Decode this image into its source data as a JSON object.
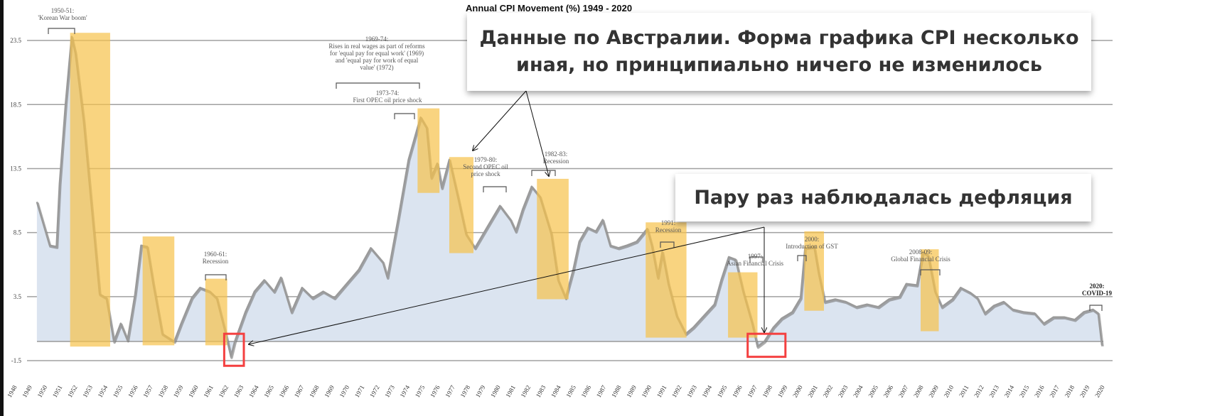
{
  "chart_data": {
    "type": "area",
    "title": "Annual CPI Movement (%) 1949 - 2020",
    "xlabel": "",
    "ylabel": "",
    "ylim": [
      -1.5,
      23.5
    ],
    "yticks": [
      "23.5",
      "18.5",
      "13.5",
      "8.5",
      "3.5",
      "-1.5"
    ],
    "ytick_values": [
      23.5,
      18.5,
      13.5,
      8.5,
      3.5,
      -1.5
    ],
    "xlim": [
      1948,
      2020
    ],
    "grid": true,
    "colors": {
      "area": "#dbe4f0",
      "line": "#9a9a9a",
      "band": "#f7c24a",
      "highlight": "#f44040",
      "grid": "#a0a0a0"
    },
    "series": [
      {
        "x": [
          1949.5,
          1950.35,
          1950.8,
          1951.0,
          1951.4,
          1951.8,
          1952.05,
          1952.6,
          1953.2,
          1953.65,
          1954.1,
          1954.6,
          1955.05,
          1955.5,
          1956.0,
          1956.4,
          1956.8,
          1957.2,
          1957.8,
          1958.6,
          1959.05,
          1959.75,
          1960.3,
          1960.95,
          1961.4,
          1962.0,
          1962.35,
          1962.6,
          1963.3,
          1963.9,
          1964.55,
          1965.2,
          1965.65,
          1966.35,
          1967.05,
          1967.75,
          1968.45,
          1969.2,
          1970.0,
          1970.8,
          1971.6,
          1972.4,
          1972.7,
          1973.4,
          1974.1,
          1974.7,
          1974.9,
          1975.3,
          1975.6,
          1976.0,
          1976.3,
          1976.8,
          1977.4,
          1977.9,
          1978.5,
          1979.3,
          1980.15,
          1980.85,
          1981.2,
          1981.65,
          1982.25,
          1982.8,
          1983.55,
          1984.0,
          1984.5,
          1985.0,
          1985.4,
          1985.95,
          1986.5,
          1986.95,
          1987.45,
          1988.0,
          1988.55,
          1989.2,
          1989.9,
          1990.2,
          1990.6,
          1990.9,
          1991.3,
          1991.85,
          1992.45,
          1992.95,
          1993.65,
          1994.35,
          1994.8,
          1995.3,
          1995.75,
          1996.25,
          1996.85,
          1997.2,
          1997.65,
          1998.25,
          1998.8,
          1999.5,
          2000.05,
          2000.35,
          2000.95,
          2001.25,
          2001.65,
          2002.35,
          2003.05,
          2003.75,
          2004.45,
          2005.2,
          2005.9,
          2006.6,
          2007.05,
          2007.75,
          2008.15,
          2008.5,
          2008.95,
          2009.4,
          2010.1,
          2010.65,
          2011.3,
          2011.75,
          2012.25,
          2012.85,
          2013.5,
          2014.1,
          2014.8,
          2015.55,
          2016.15,
          2016.8,
          2017.5,
          2018.2,
          2018.8,
          2019.4,
          2019.75,
          2020.0
        ],
        "values": [
          10.9,
          7.5,
          7.4,
          12.3,
          18.6,
          23.8,
          22.5,
          17.2,
          9.5,
          3.7,
          3.4,
          0,
          1.4,
          0.1,
          3.7,
          7.5,
          7.4,
          4.5,
          0.6,
          0,
          1.4,
          3.4,
          4.2,
          3.9,
          3.4,
          0.6,
          -1.2,
          0,
          2.3,
          3.9,
          4.8,
          3.9,
          5.0,
          2.3,
          4.2,
          3.4,
          3.9,
          3.4,
          4.5,
          5.6,
          7.3,
          6.2,
          5.0,
          9.5,
          14.2,
          16.7,
          17.5,
          16.7,
          12.8,
          13.9,
          12.0,
          14.2,
          11.1,
          8.4,
          7.3,
          8.9,
          10.6,
          9.5,
          8.6,
          10.3,
          12.1,
          11.3,
          8.4,
          4.8,
          3.4,
          5.6,
          7.8,
          8.9,
          8.6,
          9.5,
          7.5,
          7.3,
          7.5,
          7.8,
          8.8,
          7.5,
          5.0,
          7.0,
          4.5,
          2.0,
          0.6,
          1.1,
          2.0,
          2.9,
          4.8,
          6.6,
          6.4,
          3.9,
          1.4,
          -0.4,
          0,
          1.1,
          1.8,
          2.3,
          3.4,
          7.3,
          7.4,
          5.3,
          3.1,
          3.3,
          3.1,
          2.7,
          2.9,
          2.7,
          3.3,
          3.5,
          4.5,
          4.4,
          7.0,
          6.7,
          3.9,
          2.7,
          3.3,
          4.2,
          3.8,
          3.4,
          2.2,
          2.8,
          3.1,
          2.5,
          2.3,
          2.2,
          1.4,
          1.9,
          1.9,
          1.7,
          2.3,
          2.5,
          2.2,
          -0.3
        ]
      }
    ],
    "bands": [
      {
        "from": 1951.7,
        "to": 1954.35,
        "top": 24.1,
        "bottom": -0.4
      },
      {
        "from": 1956.5,
        "to": 1958.6,
        "top": 8.2,
        "bottom": -0.3
      },
      {
        "from": 1960.65,
        "to": 1962.1,
        "top": 4.9,
        "bottom": -0.3
      },
      {
        "from": 1974.7,
        "to": 1976.15,
        "top": 18.2,
        "bottom": 11.6
      },
      {
        "from": 1976.8,
        "to": 1978.4,
        "top": 14.4,
        "bottom": 6.9
      },
      {
        "from": 1982.6,
        "to": 1984.7,
        "top": 12.7,
        "bottom": 3.3
      },
      {
        "from": 1989.8,
        "to": 1992.5,
        "top": 9.3,
        "bottom": 0.3
      },
      {
        "from": 1995.25,
        "to": 1997.2,
        "top": 5.4,
        "bottom": 0.3
      },
      {
        "from": 2000.3,
        "to": 2001.6,
        "top": 8.6,
        "bottom": 2.4
      },
      {
        "from": 2008.0,
        "to": 2009.2,
        "top": 7.2,
        "bottom": 0.8
      }
    ],
    "highlights": [
      {
        "from": 1961.9,
        "to": 1963.2,
        "top": 0.6,
        "bottom": -1.9
      },
      {
        "from": 1996.55,
        "to": 1999.05,
        "top": 0.6,
        "bottom": -1.2
      }
    ],
    "annotations": [
      {
        "lines": [
          "1950-51:",
          "'Korean War boom'"
        ]
      },
      {
        "lines": [
          "1969-74:",
          "Rises in real wages as part of reforms",
          "for 'equal pay for equal work' (1969)",
          "and 'equal pay for work of equal",
          "value' (1972)"
        ]
      },
      {
        "lines": [
          "1973-74:",
          "First OPEC oil price shock"
        ]
      },
      {
        "lines": [
          "1979-80:",
          "Second OPEC oil",
          "price shock"
        ]
      },
      {
        "lines": [
          "1982-83:",
          "Recession"
        ]
      },
      {
        "lines": [
          "1960-61:",
          "Recession"
        ]
      },
      {
        "lines": [
          "1991:",
          "Recession"
        ]
      },
      {
        "lines": [
          "1997:",
          "Asian Financial Crisis"
        ]
      },
      {
        "lines": [
          "2000:",
          "Introduction of GST"
        ]
      },
      {
        "lines": [
          "2008-09:",
          "Global Financial Crisis"
        ]
      },
      {
        "lines": [
          "2020:",
          "COVID-19"
        ]
      }
    ]
  },
  "callouts": {
    "australia": {
      "line1": "Данные по Австралии. Форма графика CPI несколько",
      "line2": "иная, но принципиально ничего не изменилось"
    },
    "deflation": {
      "text": "Пару раз наблюдалась дефляция"
    }
  }
}
